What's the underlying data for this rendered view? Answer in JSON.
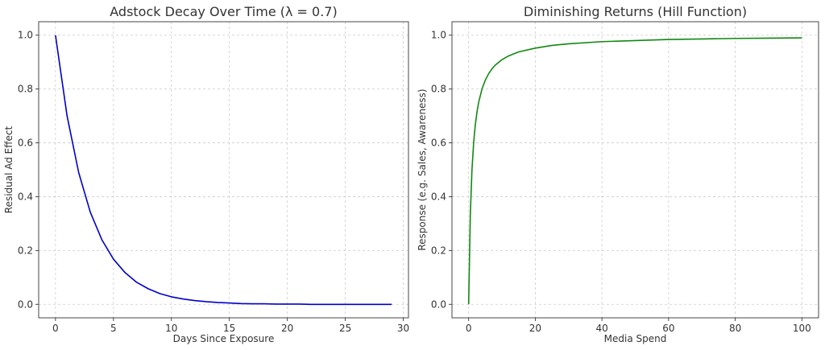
{
  "chart_data": [
    {
      "type": "line",
      "title": "Adstock Decay Over Time (λ = 0.7)",
      "xlabel": "Days Since Exposure",
      "ylabel": "Residual Ad Effect",
      "xlim": [
        -1.45,
        30.45
      ],
      "ylim": [
        -0.05,
        1.05
      ],
      "xticks": [
        0,
        5,
        10,
        15,
        20,
        25,
        30
      ],
      "yticks": [
        0.0,
        0.2,
        0.4,
        0.6,
        0.8,
        1.0
      ],
      "xtick_labels": [
        "0",
        "5",
        "10",
        "15",
        "20",
        "25",
        "30"
      ],
      "ytick_labels": [
        "0.0",
        "0.2",
        "0.4",
        "0.6",
        "0.8",
        "1.0"
      ],
      "grid": true,
      "color": "#0000cc",
      "series": [
        {
          "x": [
            0,
            1,
            2,
            3,
            4,
            5,
            6,
            7,
            8,
            9,
            10,
            11,
            12,
            13,
            14,
            15,
            16,
            17,
            18,
            19,
            20,
            21,
            22,
            23,
            24,
            25,
            26,
            27,
            28,
            29
          ],
          "y": [
            1.0,
            0.7,
            0.49,
            0.343,
            0.24,
            0.168,
            0.118,
            0.082,
            0.058,
            0.04,
            0.028,
            0.02,
            0.014,
            0.01,
            0.007,
            0.005,
            0.003,
            0.002,
            0.002,
            0.001,
            0.001,
            0.001,
            0.0,
            0.0,
            0.0,
            0.0,
            0.0,
            0.0,
            0.0,
            0.0
          ]
        }
      ]
    },
    {
      "type": "line",
      "title": "Diminishing Returns (Hill Function)",
      "xlabel": "Media Spend",
      "ylabel": "Response (e.g. Sales, Awareness)",
      "xlim": [
        -5,
        105
      ],
      "ylim": [
        -0.05,
        1.05
      ],
      "xticks": [
        0,
        20,
        40,
        60,
        80,
        100
      ],
      "yticks": [
        0.0,
        0.2,
        0.4,
        0.6,
        0.8,
        1.0
      ],
      "xtick_labels": [
        "0",
        "20",
        "40",
        "60",
        "80",
        "100"
      ],
      "ytick_labels": [
        "0.0",
        "0.2",
        "0.4",
        "0.6",
        "0.8",
        "1.0"
      ],
      "grid": true,
      "color": "#118811",
      "series": [
        {
          "x": [
            0,
            0.5,
            1,
            1.5,
            2,
            2.5,
            3,
            4,
            5,
            6,
            7,
            8,
            10,
            12,
            15,
            20,
            25,
            30,
            40,
            50,
            60,
            70,
            80,
            90,
            100
          ],
          "y": [
            0.0,
            0.333,
            0.5,
            0.6,
            0.667,
            0.714,
            0.75,
            0.8,
            0.833,
            0.857,
            0.875,
            0.889,
            0.909,
            0.923,
            0.938,
            0.952,
            0.962,
            0.968,
            0.976,
            0.98,
            0.984,
            0.986,
            0.988,
            0.989,
            0.99
          ]
        }
      ]
    }
  ]
}
